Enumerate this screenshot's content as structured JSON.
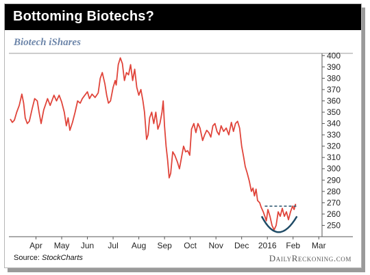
{
  "header": {
    "title": "Bottoming Biotechs?",
    "subtitle": "Biotech iShares"
  },
  "footer": {
    "source_label": "Source:",
    "source_name": "StockCharts",
    "brand": "DailyReckoning.com"
  },
  "colors": {
    "title_bg": "#000000",
    "title_text": "#ffffff",
    "subtitle": "#6d86aa",
    "price_line": "#e0443a",
    "annotation": "#1f4b66"
  },
  "chart_data": {
    "type": "line",
    "title": "Biotech iShares",
    "xlabel": "",
    "ylabel": "",
    "ylim": [
      240,
      402
    ],
    "y_ticks": [
      250,
      260,
      270,
      280,
      290,
      300,
      310,
      320,
      330,
      340,
      350,
      360,
      370,
      380,
      390,
      400
    ],
    "x_month_labels": [
      "Apr",
      "May",
      "Jun",
      "Jul",
      "Aug",
      "Sep",
      "Oct",
      "Nov",
      "Dec",
      "2016",
      "Feb",
      "Mar"
    ],
    "month_positions": [
      1.0,
      2.0,
      3.0,
      4.0,
      5.0,
      6.0,
      7.0,
      8.0,
      9.0,
      10.0,
      11.0,
      12.0
    ],
    "xlim": [
      0.0,
      12.1
    ],
    "grid": false,
    "series": [
      {
        "values": [
          [
            0.0,
            344
          ],
          [
            0.08,
            341
          ],
          [
            0.16,
            343
          ],
          [
            0.25,
            350
          ],
          [
            0.35,
            356
          ],
          [
            0.45,
            366
          ],
          [
            0.52,
            358
          ],
          [
            0.58,
            345
          ],
          [
            0.66,
            340
          ],
          [
            0.74,
            342
          ],
          [
            0.85,
            353
          ],
          [
            0.95,
            362
          ],
          [
            1.05,
            360
          ],
          [
            1.12,
            350
          ],
          [
            1.2,
            340
          ],
          [
            1.3,
            352
          ],
          [
            1.45,
            362
          ],
          [
            1.55,
            356
          ],
          [
            1.7,
            365
          ],
          [
            1.8,
            360
          ],
          [
            1.9,
            365
          ],
          [
            2.0,
            359
          ],
          [
            2.1,
            350
          ],
          [
            2.18,
            338
          ],
          [
            2.25,
            345
          ],
          [
            2.32,
            334
          ],
          [
            2.42,
            341
          ],
          [
            2.52,
            350
          ],
          [
            2.62,
            360
          ],
          [
            2.72,
            358
          ],
          [
            2.8,
            362
          ],
          [
            2.9,
            365
          ],
          [
            3.0,
            368
          ],
          [
            3.08,
            362
          ],
          [
            3.18,
            366
          ],
          [
            3.3,
            363
          ],
          [
            3.42,
            367
          ],
          [
            3.5,
            380
          ],
          [
            3.58,
            385
          ],
          [
            3.68,
            375
          ],
          [
            3.75,
            365
          ],
          [
            3.82,
            358
          ],
          [
            3.9,
            360
          ],
          [
            4.0,
            372
          ],
          [
            4.08,
            378
          ],
          [
            4.12,
            374
          ],
          [
            4.2,
            392
          ],
          [
            4.28,
            398
          ],
          [
            4.36,
            393
          ],
          [
            4.44,
            378
          ],
          [
            4.52,
            385
          ],
          [
            4.6,
            383
          ],
          [
            4.68,
            392
          ],
          [
            4.76,
            378
          ],
          [
            4.84,
            388
          ],
          [
            4.92,
            372
          ],
          [
            5.0,
            365
          ],
          [
            5.08,
            370
          ],
          [
            5.16,
            360
          ],
          [
            5.22,
            350
          ],
          [
            5.3,
            326
          ],
          [
            5.36,
            330
          ],
          [
            5.42,
            345
          ],
          [
            5.5,
            350
          ],
          [
            5.58,
            340
          ],
          [
            5.66,
            350
          ],
          [
            5.74,
            335
          ],
          [
            5.82,
            340
          ],
          [
            5.9,
            350
          ],
          [
            5.95,
            360
          ],
          [
            6.0,
            338
          ],
          [
            6.06,
            320
          ],
          [
            6.12,
            308
          ],
          [
            6.18,
            292
          ],
          [
            6.24,
            296
          ],
          [
            6.32,
            315
          ],
          [
            6.4,
            312
          ],
          [
            6.5,
            306
          ],
          [
            6.58,
            300
          ],
          [
            6.66,
            310
          ],
          [
            6.74,
            320
          ],
          [
            6.82,
            315
          ],
          [
            6.9,
            316
          ],
          [
            6.98,
            312
          ],
          [
            7.05,
            335
          ],
          [
            7.14,
            340
          ],
          [
            7.22,
            332
          ],
          [
            7.3,
            340
          ],
          [
            7.38,
            336
          ],
          [
            7.48,
            325
          ],
          [
            7.56,
            330
          ],
          [
            7.64,
            334
          ],
          [
            7.72,
            332
          ],
          [
            7.8,
            328
          ],
          [
            7.88,
            338
          ],
          [
            7.96,
            340
          ],
          [
            8.04,
            333
          ],
          [
            8.12,
            330
          ],
          [
            8.2,
            338
          ],
          [
            8.3,
            333
          ],
          [
            8.4,
            336
          ],
          [
            8.5,
            330
          ],
          [
            8.6,
            341
          ],
          [
            8.68,
            333
          ],
          [
            8.76,
            340
          ],
          [
            8.84,
            342
          ],
          [
            8.92,
            336
          ],
          [
            9.0,
            320
          ],
          [
            9.08,
            310
          ],
          [
            9.14,
            302
          ],
          [
            9.22,
            296
          ],
          [
            9.3,
            289
          ],
          [
            9.38,
            280
          ],
          [
            9.44,
            283
          ],
          [
            9.5,
            276
          ],
          [
            9.56,
            282
          ],
          [
            9.62,
            272
          ],
          [
            9.7,
            270
          ],
          [
            9.76,
            266
          ],
          [
            9.84,
            262
          ],
          [
            9.9,
            258
          ],
          [
            9.96,
            254
          ],
          [
            10.02,
            264
          ],
          [
            10.1,
            258
          ],
          [
            10.18,
            250
          ],
          [
            10.26,
            246
          ],
          [
            10.34,
            250
          ],
          [
            10.42,
            262
          ],
          [
            10.5,
            258
          ],
          [
            10.58,
            265
          ],
          [
            10.66,
            258
          ],
          [
            10.74,
            262
          ],
          [
            10.82,
            255
          ],
          [
            10.9,
            262
          ],
          [
            10.98,
            267
          ],
          [
            11.04,
            264
          ],
          [
            11.1,
            269
          ]
        ]
      }
    ]
  }
}
